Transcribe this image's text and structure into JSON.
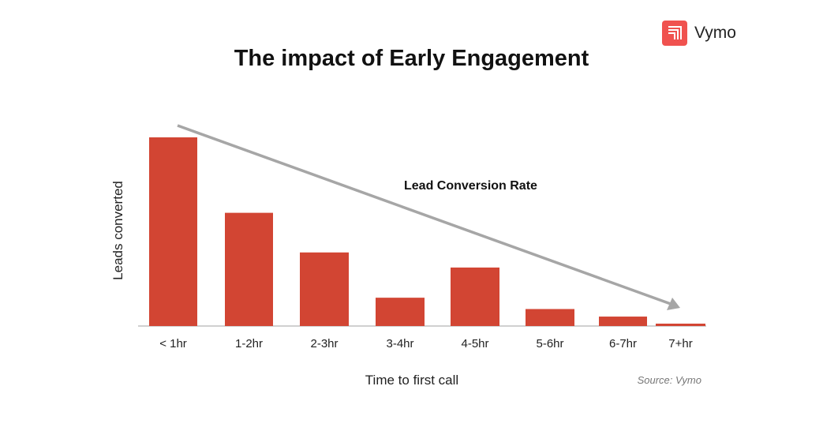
{
  "logo": {
    "text": "Vymo",
    "color": "#f0524f"
  },
  "chart_data": {
    "type": "bar",
    "title": "The impact of Early Engagement",
    "xlabel": "Time to first call",
    "ylabel": "Leads converted",
    "categories": [
      "< 1hr",
      "1-2hr",
      "2-3hr",
      "3-4hr",
      "4-5hr",
      "5-6hr",
      "6-7hr",
      "7+hr"
    ],
    "values": [
      100,
      60,
      39,
      15,
      31,
      9,
      5,
      1
    ],
    "ylim": [
      0,
      100
    ],
    "y_ticks_shown": false,
    "grid": false,
    "bar_color": "#d24533",
    "annotation": {
      "text": "Lead Conversion Rate",
      "type": "downward trend arrow",
      "color": "#a6a6a6"
    },
    "source": "Source: Vymo"
  }
}
